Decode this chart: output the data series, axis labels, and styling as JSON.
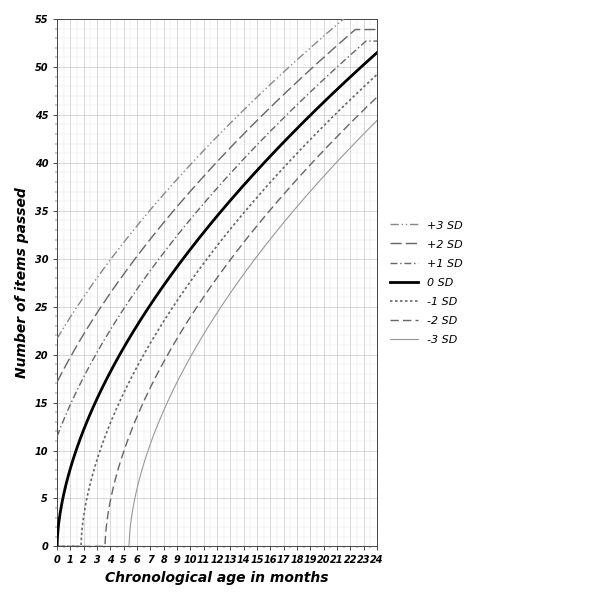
{
  "title": "",
  "xlabel": "Chronological age in months",
  "ylabel": "Number of items passed",
  "xlim": [
    0,
    24
  ],
  "ylim": [
    0,
    55
  ],
  "xticks": [
    0,
    1,
    2,
    3,
    4,
    5,
    6,
    7,
    8,
    9,
    10,
    11,
    12,
    13,
    14,
    15,
    16,
    17,
    18,
    19,
    20,
    21,
    22,
    23,
    24
  ],
  "yticks": [
    0,
    5,
    10,
    15,
    20,
    25,
    30,
    35,
    40,
    45,
    50,
    55
  ],
  "grid_major_color": "#c8c8c8",
  "grid_minor_color": "#e2e2e2",
  "background_color": "#ffffff",
  "curve_defs": [
    {
      "shift": 3,
      "color": "#888888",
      "linestyle_name": "dashdot2",
      "linewidth": 1.0,
      "label": "+3 SD"
    },
    {
      "shift": 2,
      "color": "#666666",
      "linestyle_name": "longdash",
      "linewidth": 1.0,
      "label": "+2 SD"
    },
    {
      "shift": 1,
      "color": "#666666",
      "linestyle_name": "dashdot",
      "linewidth": 1.0,
      "label": "+1 SD"
    },
    {
      "shift": 0,
      "color": "#000000",
      "linestyle_name": "solid",
      "linewidth": 2.0,
      "label": "0 SD"
    },
    {
      "shift": -1,
      "color": "#666666",
      "linestyle_name": "dotted",
      "linewidth": 1.2,
      "label": "-1 SD"
    },
    {
      "shift": -2,
      "color": "#666666",
      "linestyle_name": "dashed",
      "linewidth": 1.0,
      "label": "-2 SD"
    },
    {
      "shift": -3,
      "color": "#999999",
      "linestyle_name": "solid",
      "linewidth": 0.8,
      "label": "-3 SD"
    }
  ],
  "model_A": 51.5,
  "model_b": 0.58,
  "model_sd_scale": 0.04,
  "legend_fontsize": 8,
  "tick_fontsize": 7,
  "axis_label_fontsize": 10
}
